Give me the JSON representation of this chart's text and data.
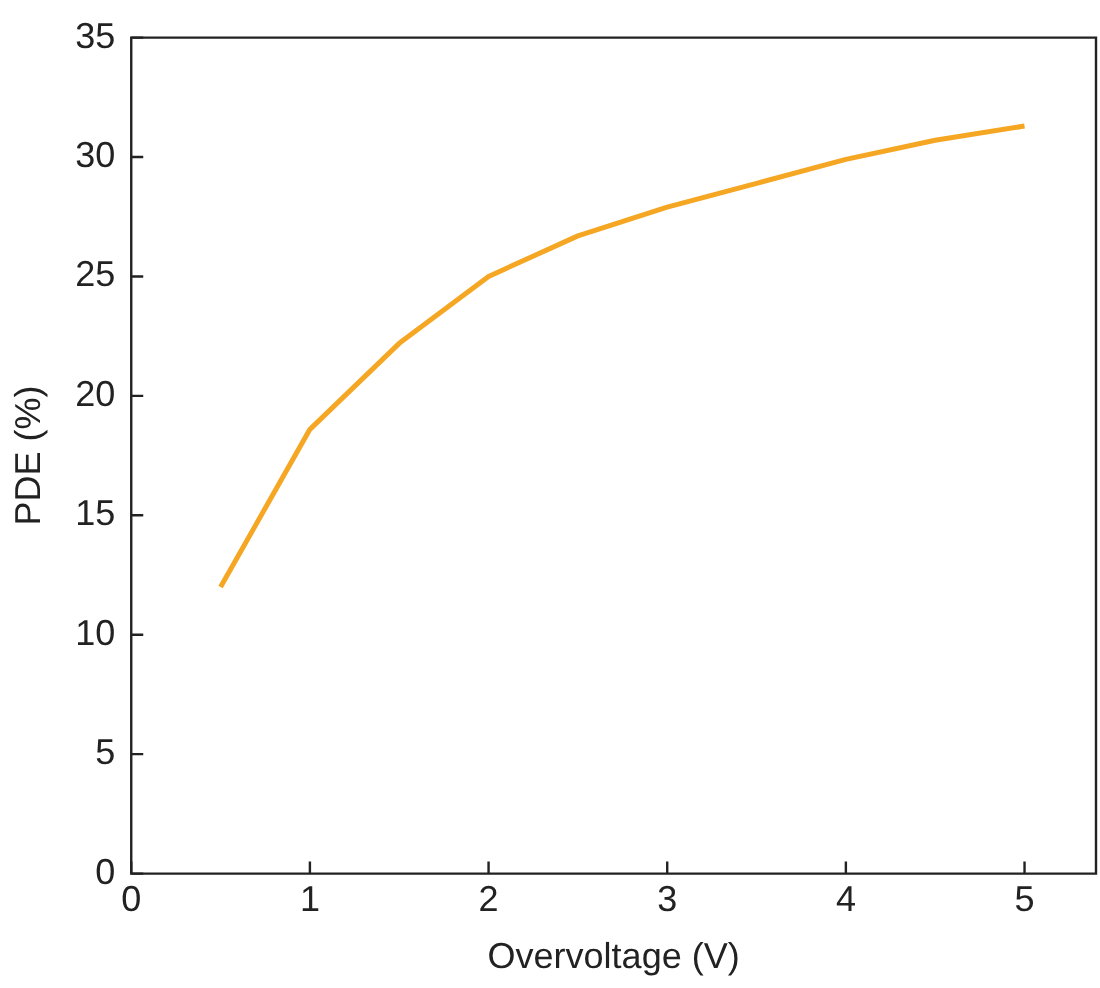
{
  "chart_data": {
    "type": "line",
    "xlabel": "Overvoltage (V)",
    "ylabel": "PDE (%)",
    "x": [
      0.5,
      1,
      1.5,
      2,
      2.5,
      3,
      3.5,
      4,
      4.5,
      5
    ],
    "series": [
      {
        "color": "#f5a623",
        "values": [
          12,
          18.6,
          22.2,
          25,
          26.7,
          27.9,
          28.9,
          29.9,
          30.7,
          31.3
        ]
      }
    ],
    "xlim": [
      0,
      5.4
    ],
    "xticks": [
      0,
      1,
      2,
      3,
      4,
      5
    ],
    "ylim": [
      0,
      35
    ],
    "yticks": [
      0,
      5,
      10,
      15,
      20,
      25,
      30,
      35
    ],
    "grid": false,
    "legend": false,
    "marker": "none",
    "line_style": "solid"
  }
}
